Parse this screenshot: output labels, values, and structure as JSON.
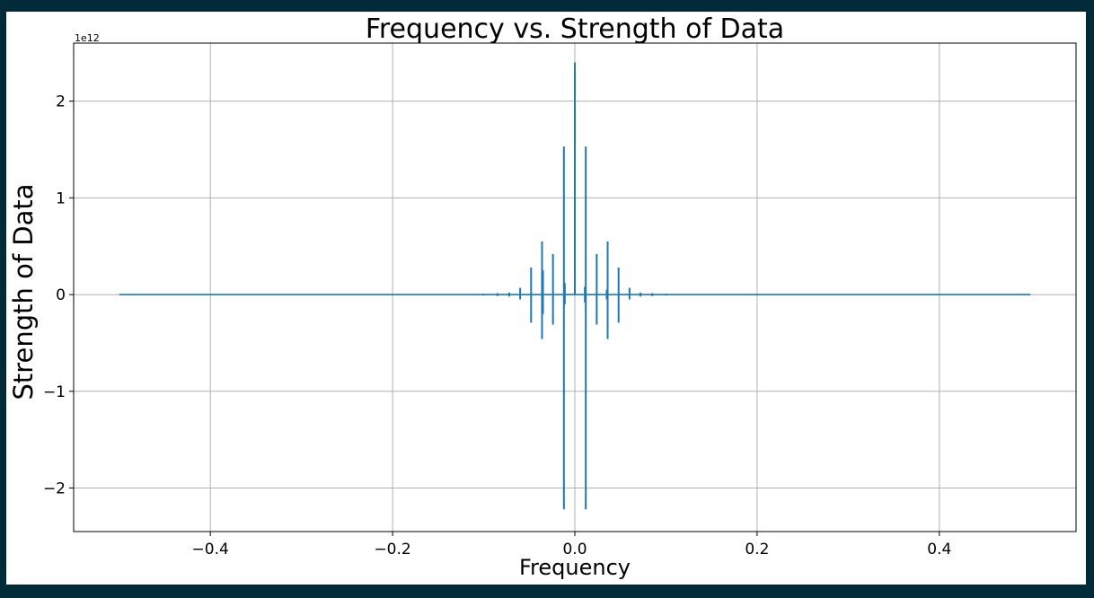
{
  "chart_data": {
    "type": "line",
    "title": "Frequency vs. Strength of Data",
    "xlabel": "Frequency",
    "ylabel": "Strength of Data",
    "y_offset_label": "1e12",
    "xlim": [
      -0.55,
      0.55
    ],
    "ylim": [
      -2.45,
      2.6
    ],
    "y_scale": 1000000000000.0,
    "grid": true,
    "line_color": "#1f77b4",
    "x_ticks": [
      -0.4,
      -0.2,
      0.0,
      0.2,
      0.4
    ],
    "x_tick_labels": [
      "−0.4",
      "−0.2",
      "0.0",
      "0.2",
      "0.4"
    ],
    "y_ticks": [
      -2,
      -1,
      0,
      1,
      2
    ],
    "y_tick_labels": [
      "−2",
      "−1",
      "0",
      "1",
      "2"
    ],
    "series": [
      {
        "baseline_range": [
          -0.5,
          0.5
        ],
        "spikes": [
          {
            "x": -0.1,
            "max": 0.01,
            "min": -0.01
          },
          {
            "x": -0.085,
            "max": 0.015,
            "min": -0.015
          },
          {
            "x": -0.072,
            "max": 0.02,
            "min": -0.02
          },
          {
            "x": -0.06,
            "max": 0.07,
            "min": -0.05
          },
          {
            "x": -0.048,
            "max": 0.28,
            "min": -0.29
          },
          {
            "x": -0.036,
            "max": 0.55,
            "min": -0.46
          },
          {
            "x": -0.035,
            "max": 0.25,
            "min": -0.2
          },
          {
            "x": -0.024,
            "max": 0.42,
            "min": -0.31
          },
          {
            "x": -0.012,
            "max": 1.53,
            "min": -2.22
          },
          {
            "x": -0.011,
            "max": 0.12,
            "min": -0.1
          },
          {
            "x": 0.0,
            "max": 2.4,
            "min": 0.0
          },
          {
            "x": 0.011,
            "max": 0.08,
            "min": -0.08
          },
          {
            "x": 0.012,
            "max": 1.53,
            "min": -2.22
          },
          {
            "x": 0.024,
            "max": 0.42,
            "min": -0.31
          },
          {
            "x": 0.035,
            "max": 0.05,
            "min": -0.05
          },
          {
            "x": 0.036,
            "max": 0.55,
            "min": -0.46
          },
          {
            "x": 0.048,
            "max": 0.28,
            "min": -0.29
          },
          {
            "x": 0.06,
            "max": 0.07,
            "min": -0.05
          },
          {
            "x": 0.072,
            "max": 0.02,
            "min": -0.02
          },
          {
            "x": 0.085,
            "max": 0.015,
            "min": -0.015
          },
          {
            "x": 0.1,
            "max": 0.01,
            "min": -0.01
          }
        ]
      }
    ]
  }
}
